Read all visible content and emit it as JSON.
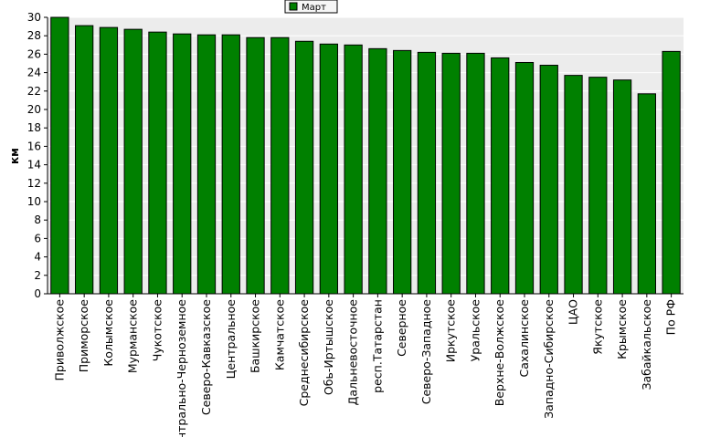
{
  "chart_data": {
    "type": "bar",
    "title": "",
    "xlabel": "",
    "ylabel": "км",
    "ylim": [
      0,
      30
    ],
    "ytick_step": 2,
    "grid": true,
    "legend_position": "top-center",
    "colors": {
      "bar": "#008000",
      "bar_edge": "#000000",
      "plot_bg": "#ececec",
      "grid": "#ffffff"
    },
    "categories": [
      "Приволжское",
      "Приморское",
      "Колымское",
      "Мурманское",
      "Чукотское",
      "Центрально-Черноземное",
      "Северо-Кавказское",
      "Центральное",
      "Башкирское",
      "Камчатское",
      "Среднесибирское",
      "Обь-Иртышское",
      "Дальневосточное",
      "респ.Татарстан",
      "Северное",
      "Северо-Западное",
      "Иркутское",
      "Уральское",
      "Верхне-Волжское",
      "Сахалинское",
      "Западно-Сибирское",
      "ЦАО",
      "Якутское",
      "Крымское",
      "Забайкальское",
      "По РФ"
    ],
    "series": [
      {
        "name": "Март",
        "values": [
          30.0,
          29.1,
          28.9,
          28.7,
          28.4,
          28.2,
          28.1,
          28.1,
          27.8,
          27.8,
          27.4,
          27.1,
          27.0,
          26.6,
          26.4,
          26.2,
          26.1,
          26.1,
          25.6,
          25.1,
          24.8,
          23.7,
          23.5,
          23.2,
          21.7,
          26.3
        ]
      }
    ]
  }
}
